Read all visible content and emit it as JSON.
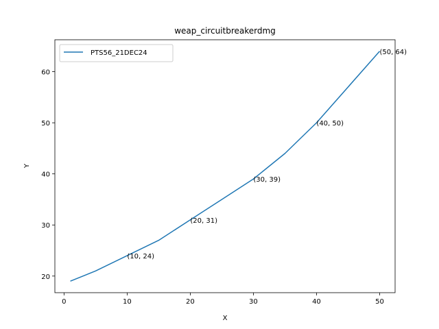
{
  "chart_data": {
    "type": "line",
    "title": "weap_circuitbreakerdmg",
    "xlabel": "X",
    "ylabel": "Y",
    "xlim": [
      -1.45,
      52.45
    ],
    "ylim": [
      16.75,
      66.25
    ],
    "xticks": [
      0,
      10,
      20,
      30,
      40,
      50
    ],
    "yticks": [
      20,
      30,
      40,
      50,
      60
    ],
    "grid": false,
    "legend_position": "top-left",
    "series": [
      {
        "name": "PTS56_21DEC24",
        "color": "#1f77b4",
        "x": [
          1,
          5,
          10,
          15,
          20,
          25,
          30,
          35,
          40,
          45,
          50
        ],
        "y": [
          19,
          21,
          24,
          27,
          31,
          35,
          39,
          44,
          50,
          57,
          64
        ]
      }
    ],
    "annotations": [
      {
        "x": 10,
        "y": 24,
        "text": "(10, 24)"
      },
      {
        "x": 20,
        "y": 31,
        "text": "(20, 31)"
      },
      {
        "x": 30,
        "y": 39,
        "text": "(30, 39)"
      },
      {
        "x": 40,
        "y": 50,
        "text": "(40, 50)"
      },
      {
        "x": 50,
        "y": 64,
        "text": "(50, 64)"
      }
    ]
  }
}
